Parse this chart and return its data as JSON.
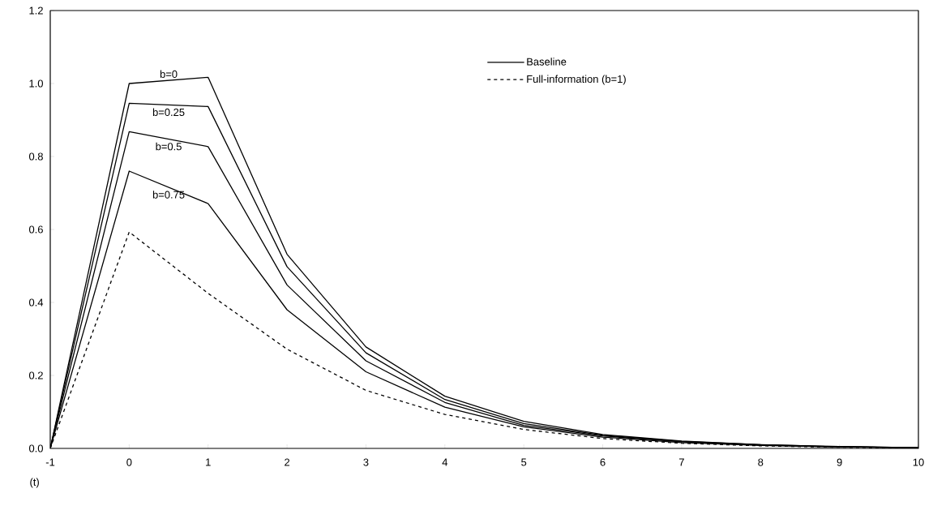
{
  "chart_data": {
    "type": "line",
    "xlabel": "(t)",
    "x": [
      -1,
      0,
      1,
      2,
      3,
      4,
      5,
      6,
      7,
      8,
      9,
      10
    ],
    "series": [
      {
        "name": "Baseline",
        "color": "#000000",
        "line_style": "solid",
        "values": [
          0,
          1.0,
          1.017,
          0.532,
          0.278,
          0.143,
          0.074,
          0.038,
          0.02,
          0.01,
          0.005,
          0.002
        ]
      },
      {
        "color": "#000000",
        "line_style": "solid",
        "values": [
          0,
          0.946,
          0.937,
          0.498,
          0.262,
          0.134,
          0.068,
          0.036,
          0.019,
          0.01,
          0.005,
          0.002
        ]
      },
      {
        "color": "#000000",
        "line_style": "solid",
        "values": [
          0,
          0.868,
          0.827,
          0.448,
          0.24,
          0.126,
          0.063,
          0.034,
          0.018,
          0.009,
          0.004,
          0.002
        ]
      },
      {
        "color": "#000000",
        "line_style": "solid",
        "values": [
          0,
          0.76,
          0.671,
          0.38,
          0.21,
          0.113,
          0.059,
          0.031,
          0.016,
          0.008,
          0.004,
          0.002
        ]
      },
      {
        "name": "Full-information (b=1)",
        "color": "#000000",
        "line_style": "dashed",
        "values": [
          0,
          0.593,
          0.425,
          0.272,
          0.159,
          0.093,
          0.052,
          0.027,
          0.014,
          0.007,
          0.003,
          0.001
        ]
      }
    ],
    "annotations": [
      "b=0",
      "b=0.25",
      "b=0.5",
      "b=0.75"
    ],
    "xlim": [
      -1,
      10
    ],
    "ylim": [
      0,
      1.2
    ],
    "xticks": [
      -1,
      0,
      1,
      2,
      3,
      4,
      5,
      6,
      7,
      8,
      9,
      10
    ],
    "yticks": [
      {
        "value": 0,
        "label": "0.0"
      },
      {
        "value": 0.2,
        "label": "0.2"
      },
      {
        "value": 0.4,
        "label": "0.4"
      },
      {
        "value": 0.6,
        "label": "0.6"
      },
      {
        "value": 0.8,
        "label": "0.8"
      },
      {
        "value": 1.0,
        "label": "1.0"
      },
      {
        "value": 1.2,
        "label": "1.2"
      }
    ],
    "grid": false,
    "legend": "top right",
    "marker": "none"
  }
}
